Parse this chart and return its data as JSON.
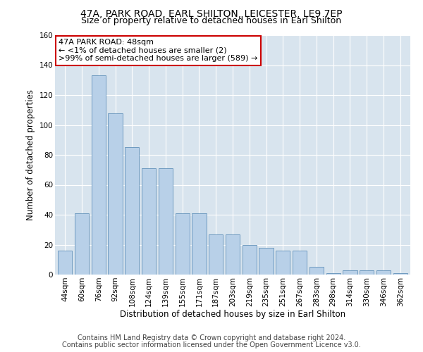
{
  "title": "47A, PARK ROAD, EARL SHILTON, LEICESTER, LE9 7EP",
  "subtitle": "Size of property relative to detached houses in Earl Shilton",
  "xlabel": "Distribution of detached houses by size in Earl Shilton",
  "ylabel": "Number of detached properties",
  "categories": [
    "44sqm",
    "60sqm",
    "76sqm",
    "92sqm",
    "108sqm",
    "124sqm",
    "139sqm",
    "155sqm",
    "171sqm",
    "187sqm",
    "203sqm",
    "219sqm",
    "235sqm",
    "251sqm",
    "267sqm",
    "283sqm",
    "298sqm",
    "314sqm",
    "330sqm",
    "346sqm",
    "362sqm"
  ],
  "values": [
    16,
    41,
    133,
    108,
    85,
    71,
    71,
    41,
    41,
    27,
    27,
    20,
    18,
    16,
    16,
    5,
    1,
    3,
    3,
    3,
    1
  ],
  "bar_color": "#b8d0e8",
  "bar_edge_color": "#6090b8",
  "annotation_text": "47A PARK ROAD: 48sqm\n← <1% of detached houses are smaller (2)\n>99% of semi-detached houses are larger (589) →",
  "annotation_box_facecolor": "#ffffff",
  "annotation_box_edgecolor": "#cc0000",
  "ylim": [
    0,
    160
  ],
  "yticks": [
    0,
    20,
    40,
    60,
    80,
    100,
    120,
    140,
    160
  ],
  "grid_color": "#ffffff",
  "axes_bg_color": "#d8e4ee",
  "fig_bg_color": "#ffffff",
  "footer_line1": "Contains HM Land Registry data © Crown copyright and database right 2024.",
  "footer_line2": "Contains public sector information licensed under the Open Government Licence v3.0.",
  "title_fontsize": 10,
  "subtitle_fontsize": 9,
  "xlabel_fontsize": 8.5,
  "ylabel_fontsize": 8.5,
  "tick_fontsize": 7.5,
  "annotation_fontsize": 8,
  "footer_fontsize": 7
}
